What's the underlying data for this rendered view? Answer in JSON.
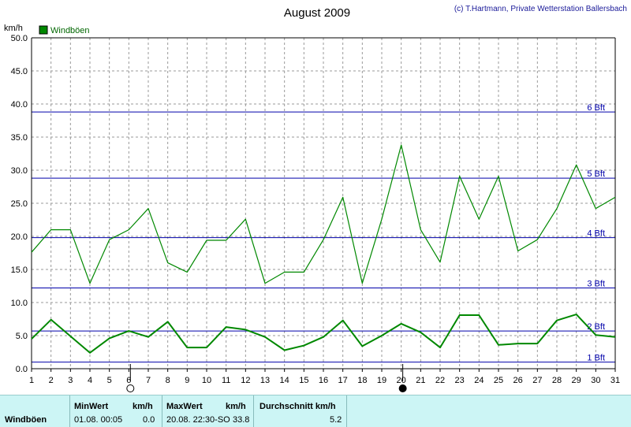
{
  "chart_data": {
    "type": "line",
    "title": "August 2009",
    "copyright": "(c) T.Hartmann, Private Wetterstation Ballersbach",
    "ylabel": "km/h",
    "ylim": [
      0,
      50
    ],
    "yticks": [
      "0.0",
      "5.0",
      "10.0",
      "15.0",
      "20.0",
      "25.0",
      "30.0",
      "35.0",
      "40.0",
      "45.0",
      "50.0"
    ],
    "categories": [
      "1",
      "2",
      "3",
      "4",
      "5",
      "6",
      "7",
      "8",
      "9",
      "10",
      "11",
      "12",
      "13",
      "14",
      "15",
      "16",
      "17",
      "18",
      "19",
      "20",
      "21",
      "22",
      "23",
      "24",
      "25",
      "26",
      "27",
      "28",
      "29",
      "30",
      "31"
    ],
    "legend": "Windböen",
    "series": [
      {
        "name": "Windböen",
        "color": "#008800",
        "values": [
          17.6,
          21.0,
          21.0,
          12.9,
          19.5,
          21.0,
          24.2,
          16.0,
          14.6,
          19.4,
          19.4,
          22.6,
          12.9,
          14.6,
          14.6,
          19.5,
          25.9,
          12.9,
          22.6,
          33.8,
          21.0,
          16.1,
          29.1,
          22.6,
          29.1,
          17.8,
          19.5,
          24.2,
          30.8,
          24.2,
          25.9
        ]
      },
      {
        "name": "",
        "color": "#008800",
        "values": [
          4.5,
          7.4,
          4.9,
          2.4,
          4.6,
          5.7,
          4.8,
          7.1,
          3.2,
          3.2,
          6.3,
          5.9,
          4.8,
          2.8,
          3.5,
          4.8,
          7.3,
          3.4,
          5.0,
          6.8,
          5.5,
          3.2,
          8.1,
          8.1,
          3.6,
          3.8,
          3.8,
          7.3,
          8.2,
          5.1,
          4.8
        ]
      }
    ],
    "beaufort_lines": [
      {
        "label": "1 Bft",
        "value": 1.0
      },
      {
        "label": "2 Bft",
        "value": 5.7
      },
      {
        "label": "3 Bft",
        "value": 12.2
      },
      {
        "label": "4 Bft",
        "value": 19.8
      },
      {
        "label": "5 Bft",
        "value": 28.8
      },
      {
        "label": "6 Bft",
        "value": 38.8
      }
    ],
    "moon_markers": [
      {
        "day": 6,
        "phase": "full"
      },
      {
        "day": 20,
        "phase": "new"
      }
    ],
    "grid": true
  },
  "stats": {
    "series_label": "Windböen",
    "min_label": "MinWert",
    "min_unit": "km/h",
    "min_time": "01.08.  00:05",
    "min_value": "0.0",
    "max_label": "MaxWert",
    "max_unit": "km/h",
    "max_time": "20.08.  22:30-SO",
    "max_value": "33.8",
    "avg_label": "Durchschnitt km/h",
    "avg_value": "5.2"
  },
  "colors": {
    "line": "#008800",
    "bft": "#0000aa",
    "grid": "#888888",
    "stats_bg": "#ccf5f5"
  }
}
